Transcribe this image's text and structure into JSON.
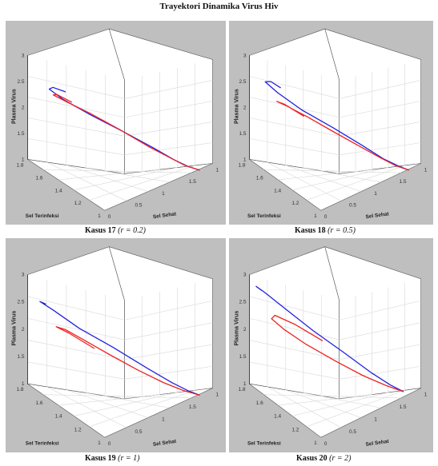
{
  "title": "Trayektori Dinamika Virus Hiv",
  "colors": {
    "panel_bg": "#bfbfbf",
    "plot_bg": "#ffffff",
    "grid": "#d8d8d8",
    "series_blue": "#2222dd",
    "series_red": "#ee2222"
  },
  "chart_data": [
    {
      "type": "line3d",
      "caption": "Kasus 17",
      "param": "(r = 0.2)",
      "xlabel": "Sel Sehat",
      "ylabel": "Sel Terinfeksi",
      "zlabel": "Plasma Virus",
      "x_ticks": [
        "1",
        "1.5",
        "1",
        "0.5",
        "0"
      ],
      "y_ticks": [
        "1.8",
        "1.6",
        "1.4",
        "1.2",
        "1"
      ],
      "z_ticks": [
        "3",
        "2.5",
        "2",
        "1.5",
        "1"
      ],
      "grid": true,
      "series": [
        {
          "color": "#2222dd",
          "points": [
            [
              1.55,
              1.02,
              1.0
            ],
            [
              1.3,
              1.08,
              1.05
            ],
            [
              1.0,
              1.15,
              1.15
            ],
            [
              0.7,
              1.25,
              1.35
            ],
            [
              0.4,
              1.4,
              1.65
            ],
            [
              0.2,
              1.55,
              1.95
            ],
            [
              0.1,
              1.68,
              2.25
            ],
            [
              0.15,
              1.74,
              2.45
            ],
            [
              0.28,
              1.72,
              2.5
            ],
            [
              0.36,
              1.66,
              2.42
            ]
          ]
        },
        {
          "color": "#ee2222",
          "points": [
            [
              1.55,
              1.02,
              1.0
            ],
            [
              1.3,
              1.09,
              1.06
            ],
            [
              1.0,
              1.16,
              1.17
            ],
            [
              0.7,
              1.27,
              1.37
            ],
            [
              0.42,
              1.41,
              1.68
            ],
            [
              0.24,
              1.55,
              1.98
            ],
            [
              0.16,
              1.66,
              2.2
            ],
            [
              0.22,
              1.72,
              2.34
            ],
            [
              0.33,
              1.7,
              2.36
            ],
            [
              0.42,
              1.63,
              2.22
            ]
          ]
        }
      ]
    },
    {
      "type": "line3d",
      "caption": "Kasus 18",
      "param": "(r = 0.5)",
      "xlabel": "Sel Sehat",
      "ylabel": "Sel Terinfeksi",
      "zlabel": "Plasma Virus",
      "x_ticks": [
        "1",
        "1.5",
        "1",
        "0.5",
        "0"
      ],
      "y_ticks": [
        "1.8",
        "1.6",
        "1.4",
        "1.2",
        "1"
      ],
      "z_ticks": [
        "3",
        "2.5",
        "2",
        "1.5",
        "1"
      ],
      "grid": true,
      "series": [
        {
          "color": "#2222dd",
          "points": [
            [
              1.55,
              1.02,
              1.0
            ],
            [
              1.3,
              1.08,
              1.06
            ],
            [
              1.0,
              1.16,
              1.17
            ],
            [
              0.7,
              1.27,
              1.4
            ],
            [
              0.42,
              1.42,
              1.72
            ],
            [
              0.22,
              1.58,
              2.05
            ],
            [
              0.13,
              1.7,
              2.38
            ],
            [
              0.18,
              1.76,
              2.6
            ],
            [
              0.3,
              1.73,
              2.62
            ],
            [
              0.34,
              1.68,
              2.5
            ]
          ]
        },
        {
          "color": "#ee2222",
          "points": [
            [
              1.55,
              1.02,
              1.0
            ],
            [
              1.3,
              1.09,
              1.06
            ],
            [
              1.0,
              1.17,
              1.18
            ],
            [
              0.72,
              1.28,
              1.38
            ],
            [
              0.46,
              1.42,
              1.65
            ],
            [
              0.3,
              1.55,
              1.92
            ],
            [
              0.24,
              1.65,
              2.12
            ],
            [
              0.3,
              1.7,
              2.22
            ],
            [
              0.44,
              1.66,
              2.18
            ],
            [
              0.55,
              1.56,
              1.95
            ]
          ]
        }
      ]
    },
    {
      "type": "line3d",
      "caption": "Kasus 19",
      "param": "(r = 1)",
      "xlabel": "Sel Sehat",
      "ylabel": "Sel Terinfeksi",
      "zlabel": "Plasma Virus",
      "x_ticks": [
        "1",
        "1.5",
        "1",
        "0.5",
        "0"
      ],
      "y_ticks": [
        "1.8",
        "1.6",
        "1.4",
        "1.2",
        "1"
      ],
      "z_ticks": [
        "3",
        "2.5",
        "2",
        "1.5",
        "1"
      ],
      "grid": true,
      "series": [
        {
          "color": "#2222dd",
          "points": [
            [
              1.55,
              1.02,
              1.0
            ],
            [
              1.3,
              1.08,
              1.06
            ],
            [
              1.0,
              1.16,
              1.18
            ],
            [
              0.7,
              1.28,
              1.42
            ],
            [
              0.44,
              1.44,
              1.78
            ],
            [
              0.26,
              1.6,
              2.12
            ],
            [
              0.18,
              1.72,
              2.45
            ],
            [
              0.24,
              1.78,
              2.62
            ],
            [
              0.34,
              1.75,
              2.58
            ]
          ]
        },
        {
          "color": "#ee2222",
          "points": [
            [
              1.55,
              1.02,
              1.0
            ],
            [
              1.3,
              1.1,
              1.06
            ],
            [
              1.0,
              1.2,
              1.18
            ],
            [
              0.74,
              1.32,
              1.38
            ],
            [
              0.52,
              1.46,
              1.66
            ],
            [
              0.4,
              1.58,
              1.92
            ],
            [
              0.38,
              1.66,
              2.1
            ],
            [
              0.48,
              1.7,
              2.16
            ],
            [
              0.62,
              1.64,
              2.06
            ],
            [
              0.72,
              1.52,
              1.78
            ]
          ]
        }
      ]
    },
    {
      "type": "line3d",
      "caption": "Kasus 20",
      "param": "(r = 2)",
      "xlabel": "Sel Sehat",
      "ylabel": "Sel Terinfeksi",
      "zlabel": "Plasma Virus",
      "x_ticks": [
        "1",
        "1.5",
        "1",
        "0.5",
        "0"
      ],
      "y_ticks": [
        "1.8",
        "1.6",
        "1.4",
        "1.2",
        "1"
      ],
      "z_ticks": [
        "3",
        "2.5",
        "2",
        "1.5",
        "1"
      ],
      "grid": true,
      "series": [
        {
          "color": "#2222dd",
          "points": [
            [
              1.4,
              1.05,
              1.05
            ],
            [
              1.15,
              1.12,
              1.15
            ],
            [
              0.88,
              1.22,
              1.35
            ],
            [
              0.62,
              1.36,
              1.7
            ],
            [
              0.42,
              1.52,
              2.1
            ],
            [
              0.3,
              1.66,
              2.5
            ],
            [
              0.28,
              1.76,
              2.8
            ],
            [
              0.36,
              1.8,
              2.92
            ],
            [
              0.44,
              1.77,
              2.85
            ]
          ]
        },
        {
          "color": "#ee2222",
          "points": [
            [
              1.4,
              1.05,
              1.05
            ],
            [
              1.18,
              1.14,
              1.14
            ],
            [
              0.95,
              1.26,
              1.3
            ],
            [
              0.75,
              1.4,
              1.55
            ],
            [
              0.6,
              1.55,
              1.85
            ],
            [
              0.52,
              1.66,
              2.12
            ],
            [
              0.55,
              1.72,
              2.32
            ],
            [
              0.68,
              1.7,
              2.4
            ],
            [
              0.82,
              1.6,
              2.25
            ],
            [
              0.9,
              1.46,
              1.95
            ]
          ]
        }
      ]
    }
  ]
}
